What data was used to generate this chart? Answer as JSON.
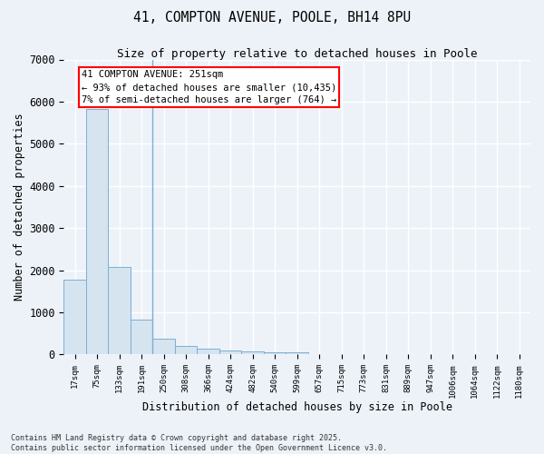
{
  "title_line1": "41, COMPTON AVENUE, POOLE, BH14 8PU",
  "title_line2": "Size of property relative to detached houses in Poole",
  "xlabel": "Distribution of detached houses by size in Poole",
  "ylabel": "Number of detached properties",
  "categories": [
    "17sqm",
    "75sqm",
    "133sqm",
    "191sqm",
    "250sqm",
    "308sqm",
    "366sqm",
    "424sqm",
    "482sqm",
    "540sqm",
    "599sqm",
    "657sqm",
    "715sqm",
    "773sqm",
    "831sqm",
    "889sqm",
    "947sqm",
    "1006sqm",
    "1064sqm",
    "1122sqm",
    "1180sqm"
  ],
  "values": [
    1780,
    5820,
    2080,
    820,
    370,
    215,
    130,
    90,
    75,
    55,
    55,
    0,
    0,
    0,
    0,
    0,
    0,
    0,
    0,
    0,
    0
  ],
  "bar_color": "#d6e4f0",
  "bar_edge_color": "#7bafd4",
  "marker_line_index": 4,
  "marker_label": "41 COMPTON AVENUE: 251sqm",
  "annotation_line1": "← 93% of detached houses are smaller (10,435)",
  "annotation_line2": "7% of semi-detached houses are larger (764) →",
  "ylim": [
    0,
    7000
  ],
  "yticks": [
    0,
    1000,
    2000,
    3000,
    4000,
    5000,
    6000,
    7000
  ],
  "background_color": "#edf2f9",
  "grid_color": "#ffffff",
  "footer_line1": "Contains HM Land Registry data © Crown copyright and database right 2025.",
  "footer_line2": "Contains public sector information licensed under the Open Government Licence v3.0."
}
